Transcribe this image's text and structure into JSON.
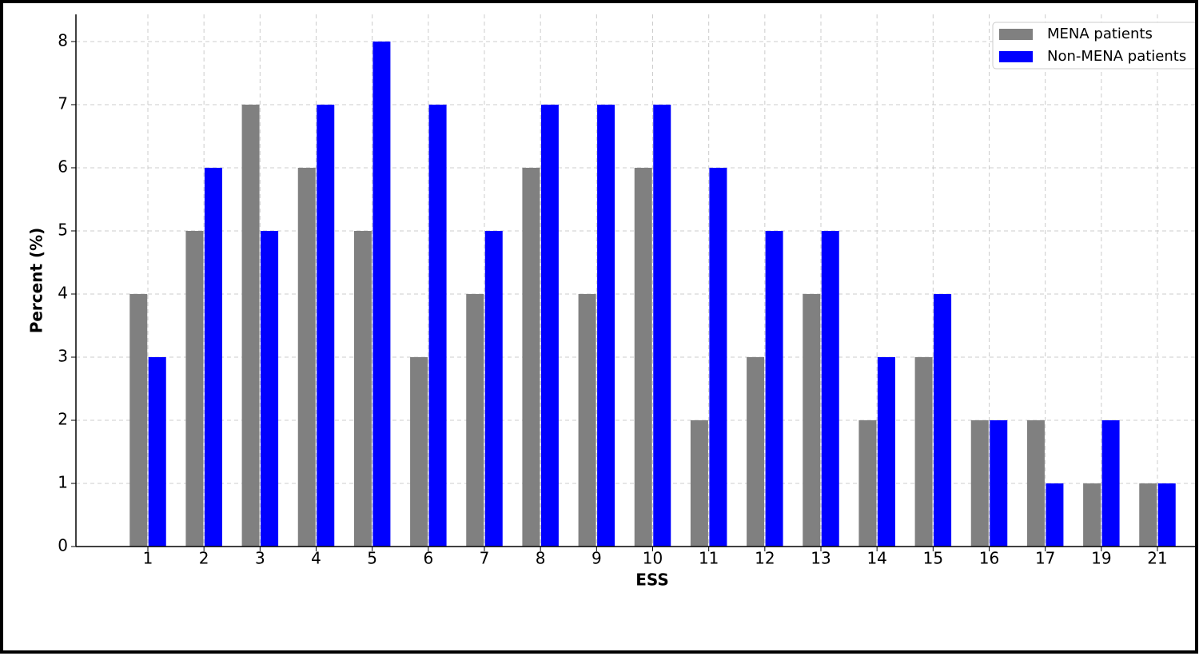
{
  "chart_data": {
    "type": "bar",
    "xlabel": "ESS",
    "ylabel": "Percent (%)",
    "categories": [
      "1",
      "2",
      "3",
      "4",
      "5",
      "6",
      "7",
      "8",
      "9",
      "10",
      "11",
      "12",
      "13",
      "14",
      "15",
      "16",
      "17",
      "19",
      "21"
    ],
    "series": [
      {
        "name": "MENA patients",
        "color": "#808080",
        "values": [
          4,
          5,
          7,
          6,
          5,
          3,
          4,
          6,
          4,
          6,
          2,
          3,
          4,
          2,
          3,
          2,
          2,
          1,
          1
        ]
      },
      {
        "name": "Non-MENA patients",
        "color": "#0000ff",
        "values": [
          3,
          6,
          5,
          7,
          8,
          7,
          5,
          7,
          7,
          7,
          6,
          5,
          5,
          3,
          4,
          2,
          1,
          2,
          1
        ]
      }
    ],
    "ylim": [
      0,
      8.43
    ],
    "yticks": [
      0,
      1,
      2,
      3,
      4,
      5,
      6,
      7,
      8
    ],
    "grid": true,
    "legend": "upper right"
  }
}
